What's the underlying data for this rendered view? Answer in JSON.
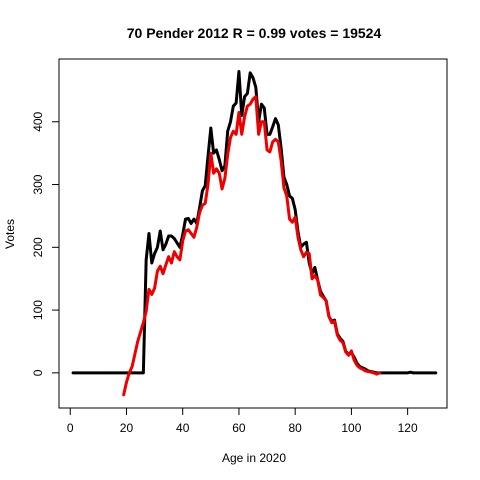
{
  "chart_data": {
    "type": "line",
    "title": "70 Pender 2012 R = 0.99 votes = 19524",
    "xlabel": "Age in 2020",
    "ylabel": "Votes",
    "xlim": [
      -4,
      134
    ],
    "ylim": [
      -56,
      500
    ],
    "x_ticks": [
      0,
      20,
      40,
      60,
      80,
      100,
      120
    ],
    "y_ticks": [
      0,
      100,
      200,
      300,
      400
    ],
    "grid": false,
    "legend": "none",
    "series": [
      {
        "color": "#000000",
        "points": [
          [
            1,
            0
          ],
          [
            5,
            0
          ],
          [
            10,
            0
          ],
          [
            15,
            0
          ],
          [
            20,
            0
          ],
          [
            25,
            0
          ],
          [
            26,
            0
          ],
          [
            27,
            180
          ],
          [
            28,
            222
          ],
          [
            29,
            175
          ],
          [
            30,
            190
          ],
          [
            31,
            200
          ],
          [
            32,
            226
          ],
          [
            33,
            196
          ],
          [
            34,
            205
          ],
          [
            35,
            218
          ],
          [
            36,
            218
          ],
          [
            37,
            214
          ],
          [
            38,
            207
          ],
          [
            39,
            200
          ],
          [
            40,
            220
          ],
          [
            41,
            245
          ],
          [
            42,
            246
          ],
          [
            43,
            238
          ],
          [
            44,
            245
          ],
          [
            45,
            238
          ],
          [
            46,
            263
          ],
          [
            47,
            290
          ],
          [
            48,
            298
          ],
          [
            49,
            345
          ],
          [
            50,
            390
          ],
          [
            51,
            350
          ],
          [
            52,
            355
          ],
          [
            53,
            340
          ],
          [
            54,
            322
          ],
          [
            55,
            330
          ],
          [
            56,
            385
          ],
          [
            57,
            400
          ],
          [
            58,
            425
          ],
          [
            59,
            430
          ],
          [
            60,
            480
          ],
          [
            61,
            410
          ],
          [
            62,
            440
          ],
          [
            63,
            445
          ],
          [
            64,
            478
          ],
          [
            65,
            470
          ],
          [
            66,
            455
          ],
          [
            67,
            400
          ],
          [
            68,
            428
          ],
          [
            69,
            422
          ],
          [
            70,
            380
          ],
          [
            71,
            380
          ],
          [
            72,
            392
          ],
          [
            73,
            405
          ],
          [
            74,
            395
          ],
          [
            75,
            358
          ],
          [
            76,
            312
          ],
          [
            77,
            300
          ],
          [
            78,
            282
          ],
          [
            79,
            278
          ],
          [
            80,
            260
          ],
          [
            81,
            225
          ],
          [
            82,
            200
          ],
          [
            83,
            205
          ],
          [
            84,
            208
          ],
          [
            85,
            175
          ],
          [
            86,
            158
          ],
          [
            87,
            168
          ],
          [
            88,
            148
          ],
          [
            89,
            130
          ],
          [
            90,
            122
          ],
          [
            91,
            115
          ],
          [
            92,
            90
          ],
          [
            93,
            82
          ],
          [
            94,
            84
          ],
          [
            95,
            62
          ],
          [
            96,
            55
          ],
          [
            97,
            50
          ],
          [
            98,
            34
          ],
          [
            99,
            30
          ],
          [
            100,
            32
          ],
          [
            101,
            25
          ],
          [
            102,
            15
          ],
          [
            103,
            10
          ],
          [
            104,
            8
          ],
          [
            105,
            6
          ],
          [
            106,
            3
          ],
          [
            107,
            2
          ],
          [
            108,
            1
          ],
          [
            109,
            0
          ],
          [
            110,
            0
          ],
          [
            115,
            0
          ],
          [
            120,
            0
          ],
          [
            121,
            1
          ],
          [
            122,
            0
          ],
          [
            125,
            0
          ],
          [
            130,
            0
          ]
        ]
      },
      {
        "color": "#ee0000",
        "points": [
          [
            19,
            -35
          ],
          [
            20,
            -15
          ],
          [
            21,
            0
          ],
          [
            22,
            10
          ],
          [
            23,
            30
          ],
          [
            24,
            50
          ],
          [
            25,
            65
          ],
          [
            26,
            80
          ],
          [
            27,
            98
          ],
          [
            28,
            133
          ],
          [
            29,
            125
          ],
          [
            30,
            135
          ],
          [
            31,
            162
          ],
          [
            32,
            170
          ],
          [
            33,
            158
          ],
          [
            34,
            172
          ],
          [
            35,
            185
          ],
          [
            36,
            175
          ],
          [
            37,
            193
          ],
          [
            38,
            185
          ],
          [
            39,
            180
          ],
          [
            40,
            210
          ],
          [
            41,
            226
          ],
          [
            42,
            228
          ],
          [
            43,
            222
          ],
          [
            44,
            216
          ],
          [
            45,
            232
          ],
          [
            46,
            255
          ],
          [
            47,
            267
          ],
          [
            48,
            270
          ],
          [
            49,
            300
          ],
          [
            50,
            350
          ],
          [
            51,
            318
          ],
          [
            52,
            325
          ],
          [
            53,
            318
          ],
          [
            54,
            293
          ],
          [
            55,
            310
          ],
          [
            56,
            348
          ],
          [
            57,
            375
          ],
          [
            58,
            385
          ],
          [
            59,
            380
          ],
          [
            60,
            415
          ],
          [
            61,
            380
          ],
          [
            62,
            408
          ],
          [
            63,
            425
          ],
          [
            64,
            428
          ],
          [
            65,
            436
          ],
          [
            66,
            440
          ],
          [
            67,
            380
          ],
          [
            68,
            400
          ],
          [
            69,
            400
          ],
          [
            70,
            355
          ],
          [
            71,
            352
          ],
          [
            72,
            368
          ],
          [
            73,
            372
          ],
          [
            74,
            368
          ],
          [
            75,
            338
          ],
          [
            76,
            295
          ],
          [
            77,
            282
          ],
          [
            78,
            245
          ],
          [
            79,
            240
          ],
          [
            80,
            248
          ],
          [
            81,
            216
          ],
          [
            82,
            196
          ],
          [
            83,
            185
          ],
          [
            84,
            192
          ],
          [
            85,
            190
          ],
          [
            86,
            150
          ],
          [
            87,
            155
          ],
          [
            88,
            148
          ],
          [
            89,
            124
          ],
          [
            90,
            120
          ],
          [
            91,
            115
          ],
          [
            92,
            90
          ],
          [
            93,
            80
          ],
          [
            94,
            82
          ],
          [
            95,
            60
          ],
          [
            96,
            52
          ],
          [
            97,
            48
          ],
          [
            98,
            33
          ],
          [
            99,
            28
          ],
          [
            100,
            35
          ],
          [
            101,
            20
          ],
          [
            102,
            12
          ],
          [
            103,
            8
          ],
          [
            104,
            6
          ],
          [
            105,
            3
          ],
          [
            106,
            2
          ],
          [
            107,
            1
          ],
          [
            108,
            0
          ],
          [
            109,
            -2
          ],
          [
            110,
            0
          ]
        ]
      }
    ]
  }
}
